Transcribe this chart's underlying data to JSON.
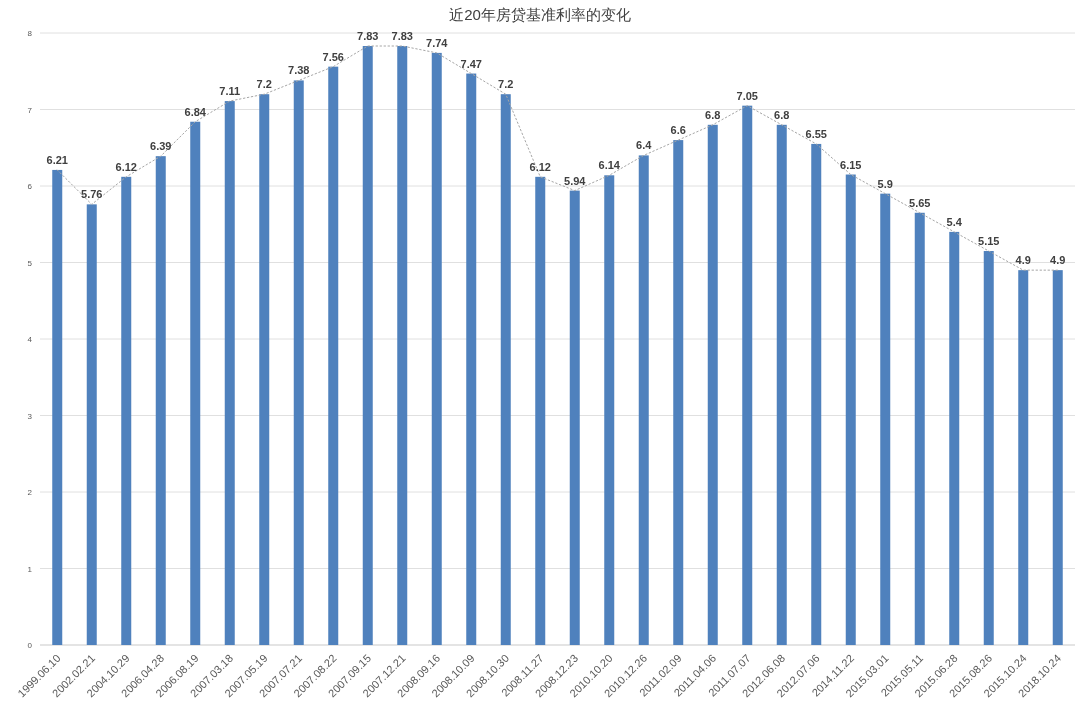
{
  "chart_data": {
    "type": "bar",
    "title": "近20年房贷基准利率的变化",
    "categories": [
      "1999.06.10",
      "2002.02.21",
      "2004.10.29",
      "2006.04.28",
      "2006.08.19",
      "2007.03.18",
      "2007.05.19",
      "2007.07.21",
      "2007.08.22",
      "2007.09.15",
      "2007.12.21",
      "2008.09.16",
      "2008.10.09",
      "2008.10.30",
      "2008.11.27",
      "2008.12.23",
      "2010.10.20",
      "2010.12.26",
      "2011.02.09",
      "2011.04.06",
      "2011.07.07",
      "2012.06.08",
      "2012.07.06",
      "2014.11.22",
      "2015.03.01",
      "2015.05.11",
      "2015.06.28",
      "2015.08.26",
      "2015.10.24",
      "2018.10.24"
    ],
    "series": [
      {
        "color": "#4f81bd",
        "value_labels": [
          "6.21",
          "5.76",
          "6.12",
          "6.39",
          "6.84",
          "7.11",
          "7.2",
          "7.38",
          "7.56",
          "7.83",
          "7.83",
          "7.74",
          "7.47",
          "7.2",
          "6.12",
          "5.94",
          "6.14",
          "6.4",
          "6.6",
          "6.8",
          "7.05",
          "6.8",
          "6.55",
          "6.15",
          "5.9",
          "5.65",
          "5.4",
          "5.15",
          "4.9",
          "4.9"
        ],
        "values": [
          6.21,
          5.76,
          6.12,
          6.39,
          6.84,
          7.11,
          7.2,
          7.38,
          7.56,
          7.83,
          7.83,
          7.74,
          7.47,
          7.2,
          6.12,
          5.94,
          6.14,
          6.4,
          6.6,
          6.8,
          7.05,
          6.8,
          6.55,
          6.15,
          5.9,
          5.65,
          5.4,
          5.15,
          4.9,
          4.9
        ]
      },
      {
        "type": "line",
        "color": "#a6a6a6",
        "line_style": "dotted",
        "marker": "none",
        "values": [
          6.21,
          5.76,
          6.12,
          6.39,
          6.84,
          7.11,
          7.2,
          7.38,
          7.56,
          7.83,
          7.83,
          7.74,
          7.47,
          7.2,
          6.12,
          5.94,
          6.14,
          6.4,
          6.6,
          6.8,
          7.05,
          6.8,
          6.55,
          6.15,
          5.9,
          5.65,
          5.4,
          5.15,
          4.9,
          4.9
        ]
      }
    ],
    "ylim": [
      0,
      8
    ],
    "yticks": [
      0,
      1,
      2,
      3,
      4,
      5,
      6,
      7,
      8
    ],
    "grid": "y"
  }
}
